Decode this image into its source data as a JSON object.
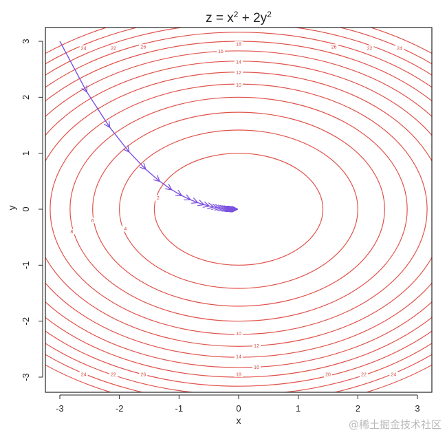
{
  "chart_data": {
    "type": "contour",
    "title": {
      "prefix": "z = x",
      "mid": " + 2y",
      "exp": "2"
    },
    "xlabel": "x",
    "ylabel": "y",
    "xlim": [
      -3,
      3
    ],
    "ylim": [
      -3,
      3
    ],
    "xticks": [
      -3,
      -2,
      -1,
      0,
      1,
      2,
      3
    ],
    "yticks": [
      -3,
      -2,
      -1,
      0,
      1,
      2,
      3
    ],
    "contour_levels": [
      2,
      4,
      6,
      8,
      10,
      12,
      14,
      16,
      18,
      20,
      22,
      24,
      26
    ],
    "labeled_levels": [
      {
        "level": 18,
        "x": 0.0,
        "y": 2.95
      },
      {
        "level": 16,
        "x": -0.3,
        "y": 2.82
      },
      {
        "level": 14,
        "x": 0.0,
        "y": 2.63
      },
      {
        "level": 12,
        "x": 0.0,
        "y": 2.44
      },
      {
        "level": 10,
        "x": 0.0,
        "y": 2.22
      },
      {
        "level": 26,
        "x": -1.6,
        "y": 2.9
      },
      {
        "level": 26,
        "x": 1.6,
        "y": 2.9
      },
      {
        "level": 22,
        "x": -2.1,
        "y": 2.88
      },
      {
        "level": 22,
        "x": 2.2,
        "y": 2.88
      },
      {
        "level": 24,
        "x": -2.6,
        "y": 2.88
      },
      {
        "level": 24,
        "x": 2.7,
        "y": 2.88
      },
      {
        "level": 8,
        "x": -2.8,
        "y": -0.4
      },
      {
        "level": 6,
        "x": -2.45,
        "y": -0.2
      },
      {
        "level": 4,
        "x": -1.9,
        "y": -0.35
      },
      {
        "level": 2,
        "x": -1.35,
        "y": 0.2
      },
      {
        "level": 10,
        "x": 0.0,
        "y": -2.22
      },
      {
        "level": 12,
        "x": 0.3,
        "y": -2.44
      },
      {
        "level": 14,
        "x": 0.0,
        "y": -2.63
      },
      {
        "level": 16,
        "x": 0.3,
        "y": -2.82
      },
      {
        "level": 18,
        "x": 0.0,
        "y": -2.95
      },
      {
        "level": 26,
        "x": -1.6,
        "y": -2.95
      },
      {
        "level": 22,
        "x": -2.1,
        "y": -2.95
      },
      {
        "level": 24,
        "x": -2.6,
        "y": -2.95
      },
      {
        "level": 20,
        "x": 1.5,
        "y": -2.95
      },
      {
        "level": 22,
        "x": 2.1,
        "y": -2.95
      },
      {
        "level": 24,
        "x": 2.6,
        "y": -2.95
      }
    ],
    "descent_path": {
      "start": [
        -3,
        3
      ],
      "x_step_factor": 0.85,
      "y_step_factor": 0.7,
      "steps": 30
    },
    "colors": {
      "contour": "#e0524a",
      "path": "#7b52e0",
      "axis": "#222222"
    }
  },
  "watermark": "@稀土掘金技术社区"
}
